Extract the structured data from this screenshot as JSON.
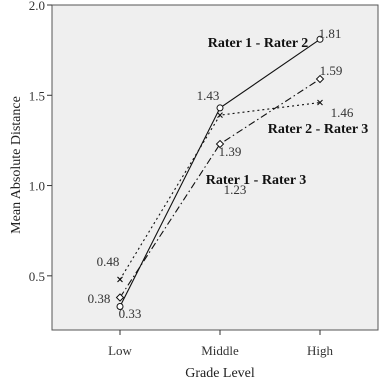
{
  "chart_data": {
    "type": "line",
    "title": "",
    "xlabel": "Grade Level",
    "ylabel": "Mean Absolute Distance",
    "categories": [
      "Low",
      "Middle",
      "High"
    ],
    "ylim": [
      0.2,
      2.0
    ],
    "yticks": [
      "0.5",
      "1.0",
      "1.5",
      "2.0"
    ],
    "grid": false,
    "plot_background": "#efefef",
    "series": [
      {
        "name": "Rater 1 - Rater 2",
        "values": [
          0.33,
          1.43,
          1.81
        ],
        "value_labels": [
          "0.33",
          "1.43",
          "1.81"
        ],
        "line_style": "solid",
        "marker": "circle"
      },
      {
        "name": "Rater 2 - Rater 3",
        "values": [
          0.48,
          1.39,
          1.46
        ],
        "value_labels": [
          "0.48",
          "1.39",
          "1.46"
        ],
        "line_style": "dotted",
        "marker": "x"
      },
      {
        "name": "Rater 1 - Rater 3",
        "values": [
          0.38,
          1.23,
          1.59
        ],
        "value_labels": [
          "0.38",
          "1.23",
          "1.59"
        ],
        "line_style": "dash-dot",
        "marker": "diamond"
      }
    ]
  }
}
